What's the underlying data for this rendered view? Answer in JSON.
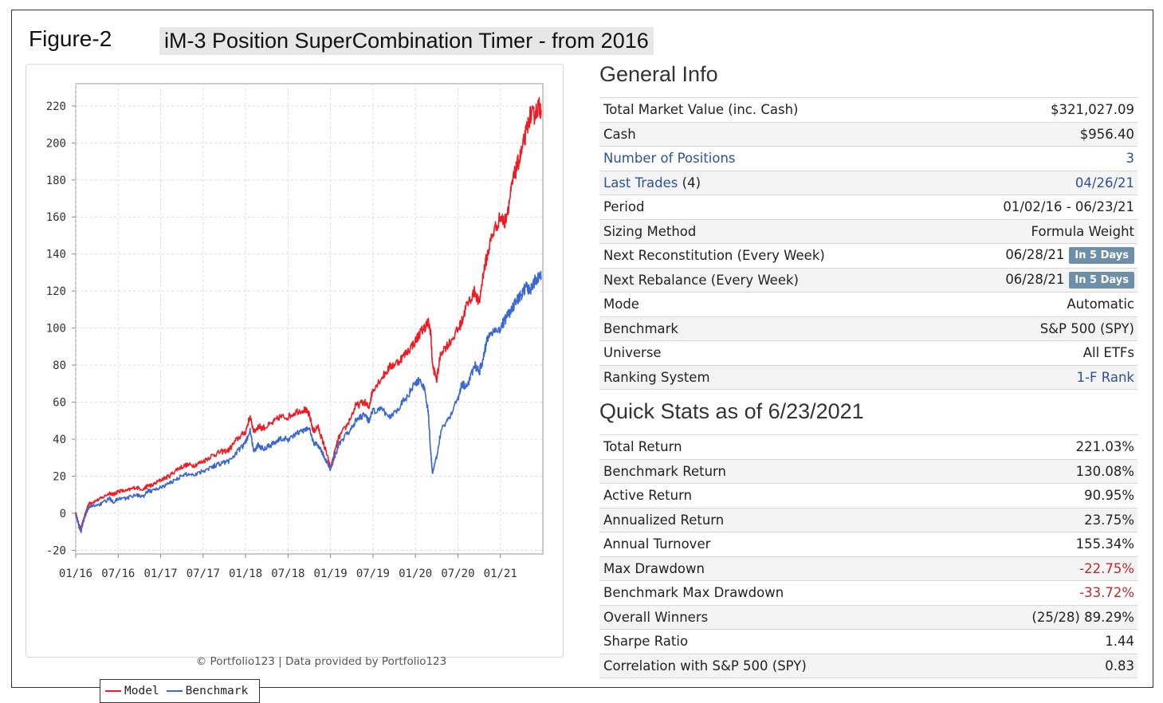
{
  "figure_label": "Figure-2",
  "title": "iM-3 Position SuperCombination Timer - from 2016",
  "general_info": {
    "heading": "General Info",
    "rows": [
      {
        "label": "Total Market Value (inc. Cash)",
        "value": "$321,027.09"
      },
      {
        "label": "Cash",
        "value": "$956.40"
      },
      {
        "label": "Number of Positions",
        "value": "3"
      },
      {
        "label": "Last Trades",
        "label_suffix": "(4)",
        "value": "04/26/21"
      },
      {
        "label": "Period",
        "value": "01/02/16 - 06/23/21"
      },
      {
        "label": "Sizing Method",
        "value": "Formula Weight"
      },
      {
        "label": "Next Reconstitution (Every Week)",
        "value": "06/28/21",
        "badge": "In 5 Days"
      },
      {
        "label": "Next Rebalance (Every Week)",
        "value": "06/28/21",
        "badge": "In 5 Days"
      },
      {
        "label": "Mode",
        "value": "Automatic"
      },
      {
        "label": "Benchmark",
        "value": "S&P 500 (SPY)"
      },
      {
        "label": "Universe",
        "value": "All ETFs"
      },
      {
        "label": "Ranking System",
        "value": "1-F Rank"
      }
    ]
  },
  "quick_stats": {
    "heading": "Quick Stats as of 6/23/2021",
    "rows": [
      {
        "label": "Total Return",
        "value": "221.03%"
      },
      {
        "label": "Benchmark Return",
        "value": "130.08%"
      },
      {
        "label": "Active Return",
        "value": "90.95%"
      },
      {
        "label": "Annualized Return",
        "value": "23.75%"
      },
      {
        "label": "Annual Turnover",
        "value": "155.34%"
      },
      {
        "label": "Max Drawdown",
        "value": "-22.75%"
      },
      {
        "label": "Benchmark Max Drawdown",
        "value": "-33.72%"
      },
      {
        "label": "Overall Winners",
        "value": "(25/28) 89.29%"
      },
      {
        "label": "Sharpe Ratio",
        "value": "1.44"
      },
      {
        "label": "Correlation with S&P 500 (SPY)",
        "value": "0.83"
      }
    ]
  },
  "colors": {
    "model": "#ee1c24",
    "benchmark": "#3a67d0",
    "link": "#2d5296",
    "negative": "#c0292b",
    "badge": "#6d8fa7"
  },
  "chart_data": {
    "type": "line",
    "credit": "© Portfolio123 | Data provided by Portfolio123",
    "ylim": [
      -22,
      232
    ],
    "yticks": [
      -20,
      0,
      20,
      40,
      60,
      80,
      100,
      120,
      140,
      160,
      180,
      200,
      220
    ],
    "xlim": [
      2016.0,
      2021.5
    ],
    "xticks": [
      {
        "label": "01/16",
        "t": 2016.0
      },
      {
        "label": "07/16",
        "t": 2016.5
      },
      {
        "label": "01/17",
        "t": 2017.0
      },
      {
        "label": "07/17",
        "t": 2017.5
      },
      {
        "label": "01/18",
        "t": 2018.0
      },
      {
        "label": "07/18",
        "t": 2018.5
      },
      {
        "label": "01/19",
        "t": 2019.0
      },
      {
        "label": "07/19",
        "t": 2019.5
      },
      {
        "label": "01/20",
        "t": 2020.0
      },
      {
        "label": "07/20",
        "t": 2020.5
      },
      {
        "label": "01/21",
        "t": 2021.0
      }
    ],
    "grid": true,
    "legend_position": "bottom-left",
    "series": [
      {
        "name": "Model",
        "color": "#ee1c24",
        "x": [
          2016.0,
          2016.03,
          2016.06,
          2016.1,
          2016.15,
          2016.2,
          2016.3,
          2016.4,
          2016.45,
          2016.5,
          2016.6,
          2016.7,
          2016.8,
          2016.85,
          2016.9,
          2017.0,
          2017.1,
          2017.2,
          2017.3,
          2017.4,
          2017.5,
          2017.6,
          2017.7,
          2017.8,
          2017.9,
          2018.0,
          2018.05,
          2018.1,
          2018.15,
          2018.2,
          2018.3,
          2018.4,
          2018.5,
          2018.6,
          2018.7,
          2018.75,
          2018.8,
          2018.85,
          2018.9,
          2018.95,
          2019.0,
          2019.05,
          2019.1,
          2019.2,
          2019.3,
          2019.4,
          2019.45,
          2019.5,
          2019.6,
          2019.7,
          2019.8,
          2019.9,
          2020.0,
          2020.05,
          2020.1,
          2020.15,
          2020.18,
          2020.2,
          2020.25,
          2020.3,
          2020.4,
          2020.5,
          2020.55,
          2020.6,
          2020.7,
          2020.75,
          2020.8,
          2020.85,
          2020.9,
          2021.0,
          2021.05,
          2021.1,
          2021.15,
          2021.2,
          2021.25,
          2021.3,
          2021.35,
          2021.4,
          2021.45,
          2021.48
        ],
        "values": [
          0,
          -5,
          -9,
          -2,
          5,
          6,
          8,
          11,
          10,
          12,
          12,
          14,
          13,
          15,
          15,
          18,
          20,
          24,
          26,
          26,
          28,
          31,
          33,
          34,
          40,
          44,
          52,
          44,
          47,
          46,
          48,
          52,
          52,
          55,
          56,
          53,
          44,
          47,
          40,
          33,
          24,
          33,
          41,
          48,
          58,
          60,
          57,
          67,
          73,
          79,
          82,
          87,
          93,
          97,
          100,
          103,
          98,
          80,
          72,
          87,
          92,
          99,
          104,
          112,
          120,
          113,
          130,
          140,
          150,
          160,
          157,
          167,
          180,
          188,
          195,
          205,
          215,
          215,
          220,
          218
        ]
      },
      {
        "name": "Benchmark",
        "color": "#3a67d0",
        "x": [
          2016.0,
          2016.03,
          2016.06,
          2016.1,
          2016.15,
          2016.2,
          2016.3,
          2016.4,
          2016.45,
          2016.5,
          2016.6,
          2016.7,
          2016.8,
          2016.85,
          2016.9,
          2017.0,
          2017.1,
          2017.2,
          2017.3,
          2017.4,
          2017.5,
          2017.6,
          2017.7,
          2017.8,
          2017.9,
          2018.0,
          2018.05,
          2018.1,
          2018.15,
          2018.2,
          2018.3,
          2018.4,
          2018.5,
          2018.6,
          2018.7,
          2018.75,
          2018.8,
          2018.85,
          2018.9,
          2018.95,
          2019.0,
          2019.05,
          2019.1,
          2019.2,
          2019.3,
          2019.4,
          2019.45,
          2019.5,
          2019.6,
          2019.7,
          2019.8,
          2019.9,
          2020.0,
          2020.05,
          2020.1,
          2020.15,
          2020.18,
          2020.2,
          2020.25,
          2020.3,
          2020.4,
          2020.5,
          2020.55,
          2020.6,
          2020.7,
          2020.75,
          2020.8,
          2020.85,
          2020.9,
          2021.0,
          2021.05,
          2021.1,
          2021.15,
          2021.2,
          2021.25,
          2021.3,
          2021.35,
          2021.4,
          2021.45,
          2021.48
        ],
        "values": [
          0,
          -6,
          -10,
          -3,
          3,
          4,
          5,
          8,
          6,
          8,
          8,
          10,
          9,
          12,
          12,
          14,
          16,
          19,
          21,
          21,
          23,
          25,
          27,
          28,
          33,
          38,
          45,
          33,
          37,
          35,
          37,
          40,
          40,
          43,
          45,
          46,
          38,
          37,
          33,
          28,
          24,
          31,
          37,
          43,
          50,
          53,
          50,
          55,
          56,
          52,
          57,
          63,
          70,
          72,
          68,
          55,
          33,
          22,
          30,
          45,
          52,
          62,
          70,
          68,
          80,
          76,
          84,
          95,
          98,
          100,
          104,
          108,
          111,
          115,
          118,
          122,
          120,
          125,
          128,
          128
        ]
      }
    ]
  }
}
